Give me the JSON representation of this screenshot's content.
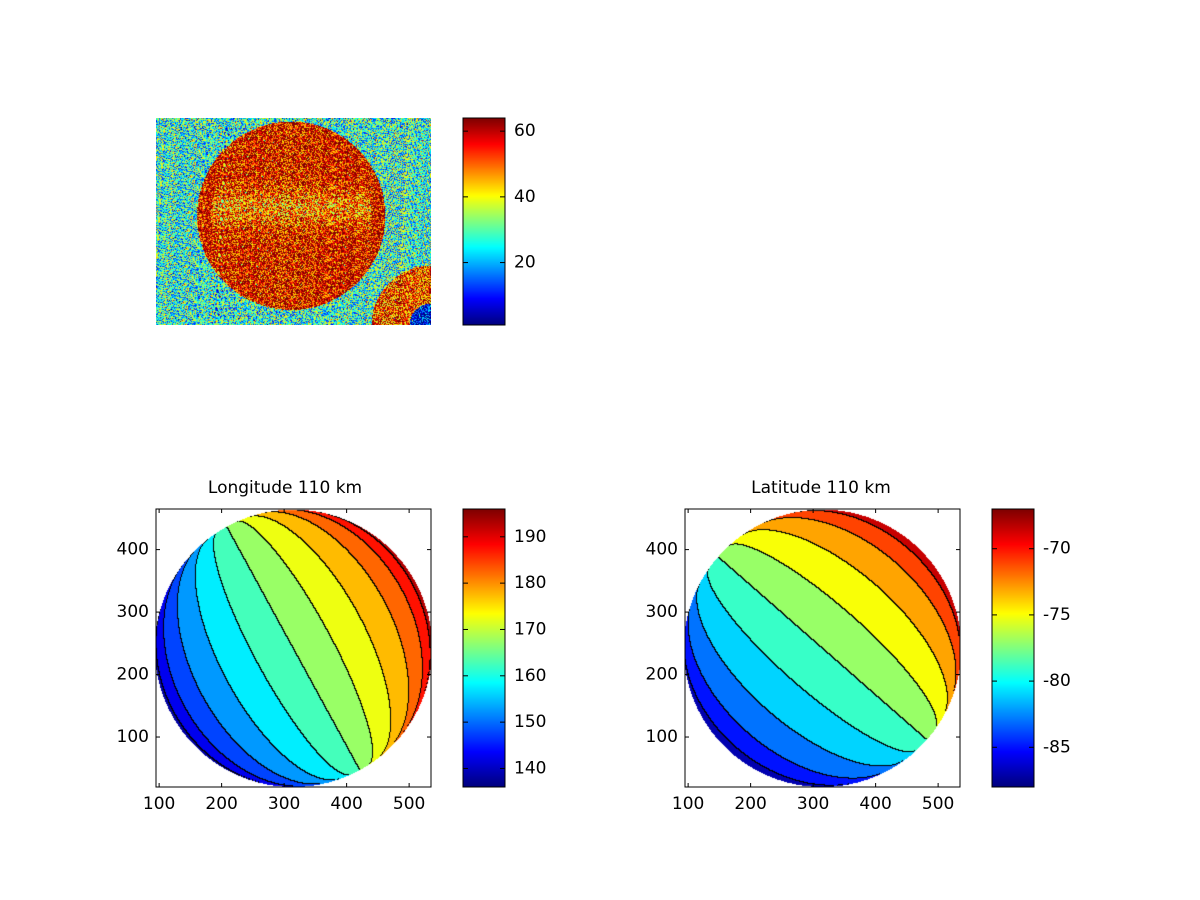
{
  "figure": {
    "background": "#ffffff",
    "colormap": "jet"
  },
  "chart_data": [
    {
      "id": "raw-image",
      "type": "heatmap",
      "title": "",
      "xlabel": "",
      "ylabel": "",
      "axes_visible": false,
      "description_of_content": "noisy image with a bright disk",
      "disk": {
        "center": [
          0.49,
          0.47
        ],
        "radius": 0.35,
        "value": 58
      },
      "corner_feature": "bottom-right",
      "background_value": 27,
      "colorbar": {
        "lim": [
          1,
          64
        ],
        "ticks": [
          20,
          40,
          60
        ],
        "tick_labels": [
          "20",
          "40",
          "60"
        ]
      }
    },
    {
      "id": "longitude-map",
      "type": "heatmap",
      "title": "Longitude 110 km",
      "xlabel": "",
      "ylabel": "",
      "xlim": [
        95,
        535
      ],
      "ylim": [
        20,
        465
      ],
      "xticks": [
        100,
        200,
        300,
        400,
        500
      ],
      "xtick_labels": [
        "100",
        "200",
        "300",
        "400",
        "500"
      ],
      "yticks": [
        100,
        200,
        300,
        400
      ],
      "ytick_labels": [
        "100",
        "200",
        "300",
        "400"
      ],
      "disk": {
        "cx": 315,
        "cy": 242,
        "r": 222
      },
      "contour_levels": [
        140,
        145,
        150,
        155,
        160,
        165,
        170,
        175,
        180,
        185,
        190
      ],
      "value_range": [
        136,
        196
      ],
      "colorbar": {
        "lim": [
          136,
          196
        ],
        "ticks": [
          140,
          150,
          160,
          170,
          180,
          190
        ],
        "tick_labels": [
          "140",
          "150",
          "160",
          "170",
          "180",
          "190"
        ]
      }
    },
    {
      "id": "latitude-map",
      "type": "heatmap",
      "title": "Latitude 110 km",
      "xlabel": "",
      "ylabel": "",
      "xlim": [
        95,
        535
      ],
      "ylim": [
        20,
        465
      ],
      "xticks": [
        100,
        200,
        300,
        400,
        500
      ],
      "xtick_labels": [
        "100",
        "200",
        "300",
        "400",
        "500"
      ],
      "yticks": [
        100,
        200,
        300,
        400
      ],
      "ytick_labels": [
        "100",
        "200",
        "300",
        "400"
      ],
      "disk": {
        "cx": 315,
        "cy": 242,
        "r": 222
      },
      "contour_levels": [
        -86,
        -84,
        -82,
        -80,
        -78,
        -76,
        -74,
        -72,
        -70
      ],
      "value_range": [
        -88,
        -67
      ],
      "colorbar": {
        "lim": [
          -88,
          -67
        ],
        "ticks": [
          -85,
          -80,
          -75,
          -70
        ],
        "tick_labels": [
          "-85",
          "-80",
          "-75",
          "-70"
        ]
      }
    }
  ]
}
